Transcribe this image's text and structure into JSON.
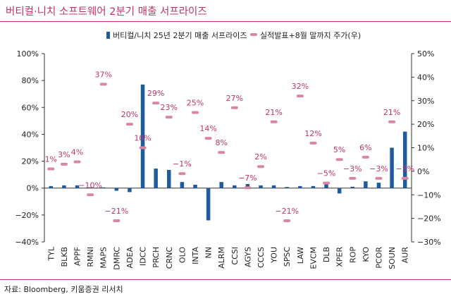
{
  "header": {
    "title": "버티컬·니치 소프트웨어 2분기 매출 서프라이즈"
  },
  "footer": {
    "source": "자료: Bloomberg, 키움증권 리서치"
  },
  "colors": {
    "title": "#c0336a",
    "bar": "#1f5c9e",
    "marker": "#d9879c",
    "axis": "#333333"
  },
  "chart_data": {
    "type": "bar",
    "categories": [
      "TYL",
      "BLKB",
      "APPF",
      "RMNI",
      "MAPS",
      "DMRC",
      "ADEA",
      "IDCC",
      "PRCH",
      "CRNC",
      "OLO",
      "INTA",
      "NN",
      "ALRM",
      "CCSI",
      "AGYS",
      "CCCS",
      "YOU",
      "SPSC",
      "LAW",
      "EVCM",
      "DLB",
      "XPER",
      "ROP",
      "KYO",
      "PCOR",
      "SOUN",
      "AUR"
    ],
    "series": [
      {
        "name": "버티컬/니치 25년 2분기 매출 서프라이즈",
        "type": "bar",
        "axis": "left",
        "values": [
          1.5,
          2,
          2,
          0.5,
          0.5,
          -2,
          -3,
          77,
          14.5,
          13.5,
          4.5,
          2.5,
          -24,
          4.5,
          2,
          3,
          2,
          2,
          0.8,
          1.5,
          1.5,
          3,
          -4,
          1,
          5,
          4,
          30,
          42
        ]
      },
      {
        "name": "실적발표+8월 말까지 주가(우)",
        "type": "marker",
        "axis": "right",
        "values": [
          1,
          3,
          4,
          -10,
          37,
          -21,
          20,
          10,
          29,
          23,
          -1,
          25,
          14,
          8,
          27,
          -7,
          2,
          21,
          -21,
          32,
          12,
          -5,
          5,
          -3,
          6,
          -3,
          21,
          -3
        ]
      }
    ],
    "marker_labels": [
      "1%",
      "3%",
      "4%",
      "−10%",
      "37%",
      "−21%",
      "20%",
      "10%",
      "29%",
      "23%",
      "−1%",
      "25%",
      "14%",
      "8%",
      "27%",
      "−7%",
      "2%",
      "21%",
      "−21%",
      "32%",
      "12%",
      "−5%",
      "5%",
      "−3%",
      "6%",
      "−3%",
      "21%",
      "−3%"
    ],
    "y_left": {
      "min": -40,
      "max": 100,
      "step": 20,
      "tick_labels": [
        "100%",
        "80%",
        "60%",
        "40%",
        "20%",
        "0%",
        "−20%",
        "−40%"
      ]
    },
    "y_right": {
      "min": -30,
      "max": 50,
      "step": 10,
      "tick_labels": [
        "50%",
        "40%",
        "30%",
        "20%",
        "10%",
        "0%",
        "−10%",
        "−20%",
        "−30%"
      ]
    },
    "legend": {
      "position": "top-center"
    },
    "grid": false
  }
}
